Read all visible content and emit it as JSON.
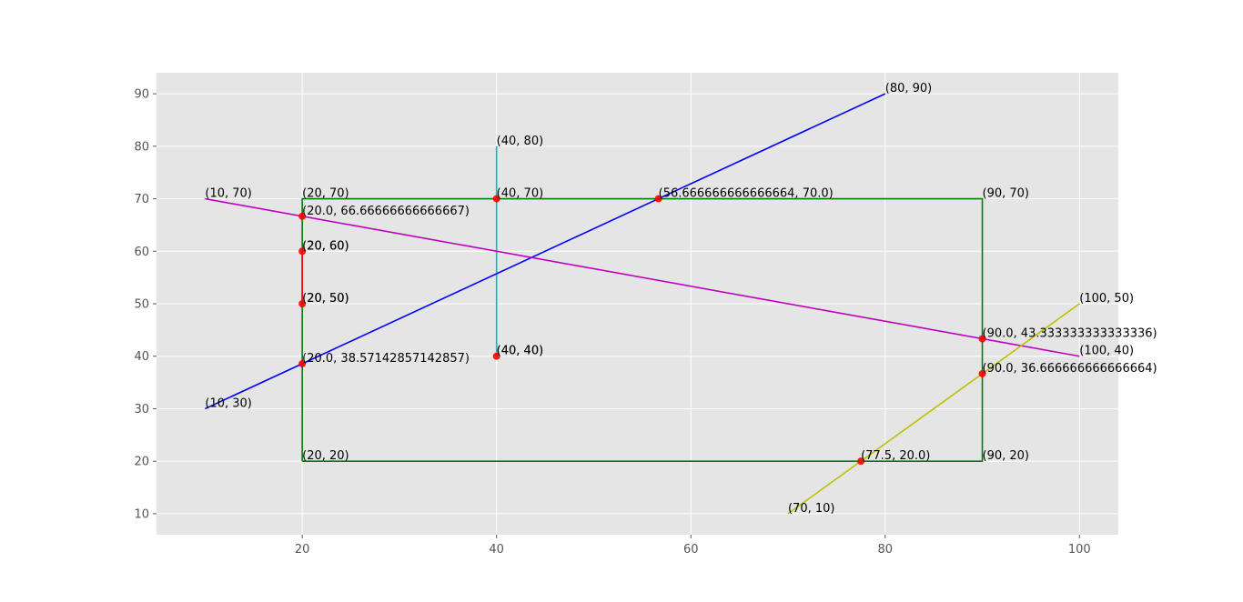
{
  "chart_data": {
    "type": "line",
    "xlim": [
      5,
      104
    ],
    "ylim": [
      6,
      94
    ],
    "x_ticks": [
      20,
      40,
      60,
      80,
      100
    ],
    "y_ticks": [
      10,
      20,
      30,
      40,
      50,
      60,
      70,
      80,
      90
    ],
    "x_tick_labels": [
      "20",
      "40",
      "60",
      "80",
      "100"
    ],
    "y_tick_labels": [
      "10",
      "20",
      "30",
      "40",
      "50",
      "60",
      "70",
      "80",
      "90"
    ],
    "grid": true,
    "style": "ggplot",
    "colors": {
      "background": "#e5e5e5",
      "grid": "#ffffff",
      "tick_text": "#555555",
      "point_fill": "#ff0000"
    },
    "lines": [
      {
        "color": "#008000",
        "closed": true,
        "points": [
          [
            20,
            20
          ],
          [
            90,
            20
          ],
          [
            90,
            70
          ],
          [
            20,
            70
          ]
        ]
      },
      {
        "color": "#ff0000",
        "points": [
          [
            20,
            50
          ],
          [
            20,
            60
          ]
        ]
      },
      {
        "color": "#00bfbf",
        "points": [
          [
            40,
            40
          ],
          [
            40,
            80
          ]
        ]
      },
      {
        "color": "#0000ff",
        "points": [
          [
            10,
            30
          ],
          [
            80,
            90
          ]
        ]
      },
      {
        "color": "#bf00bf",
        "points": [
          [
            10,
            70
          ],
          [
            100,
            40
          ]
        ]
      },
      {
        "color": "#bfbf00",
        "points": [
          [
            70,
            10
          ],
          [
            100,
            50
          ]
        ]
      }
    ],
    "points": [
      {
        "x": 20,
        "y": 50,
        "label": "(20, 50)"
      },
      {
        "x": 20,
        "y": 60,
        "label": "(20, 60)"
      },
      {
        "x": 40,
        "y": 40,
        "label": "(40, 40)"
      },
      {
        "x": 40,
        "y": 70,
        "label": "(40, 70)"
      },
      {
        "x": 56.666666666666664,
        "y": 70.0,
        "label": "(56.666666666666664, 70.0)"
      },
      {
        "x": 20.0,
        "y": 38.57142857142857,
        "label": "(20.0, 38.57142857142857)"
      },
      {
        "x": 20.0,
        "y": 66.66666666666667,
        "label": "(20.0, 66.66666666666667)"
      },
      {
        "x": 90.0,
        "y": 43.333333333333336,
        "label": "(90.0, 43.333333333333336)"
      },
      {
        "x": 77.5,
        "y": 20.0,
        "label": "(77.5, 20.0)"
      },
      {
        "x": 90.0,
        "y": 36.666666666666664,
        "label": "(90.0, 36.666666666666664)"
      }
    ],
    "annotations": [
      {
        "x": 20,
        "y": 20,
        "text": "(20, 20)"
      },
      {
        "x": 90,
        "y": 20,
        "text": "(90, 20)"
      },
      {
        "x": 90,
        "y": 70,
        "text": "(90, 70)"
      },
      {
        "x": 20,
        "y": 70,
        "text": "(20, 70)"
      },
      {
        "x": 20,
        "y": 50,
        "text": "(20, 50)"
      },
      {
        "x": 20,
        "y": 60,
        "text": "(20, 60)"
      },
      {
        "x": 40,
        "y": 40,
        "text": "(40, 40)"
      },
      {
        "x": 40,
        "y": 80,
        "text": "(40, 80)"
      },
      {
        "x": 10,
        "y": 30,
        "text": "(10, 30)"
      },
      {
        "x": 80,
        "y": 90,
        "text": "(80, 90)"
      },
      {
        "x": 10,
        "y": 70,
        "text": "(10, 70)"
      },
      {
        "x": 100,
        "y": 40,
        "text": "(100, 40)"
      },
      {
        "x": 70,
        "y": 10,
        "text": "(70, 10)"
      },
      {
        "x": 100,
        "y": 50,
        "text": "(100, 50)"
      }
    ]
  }
}
